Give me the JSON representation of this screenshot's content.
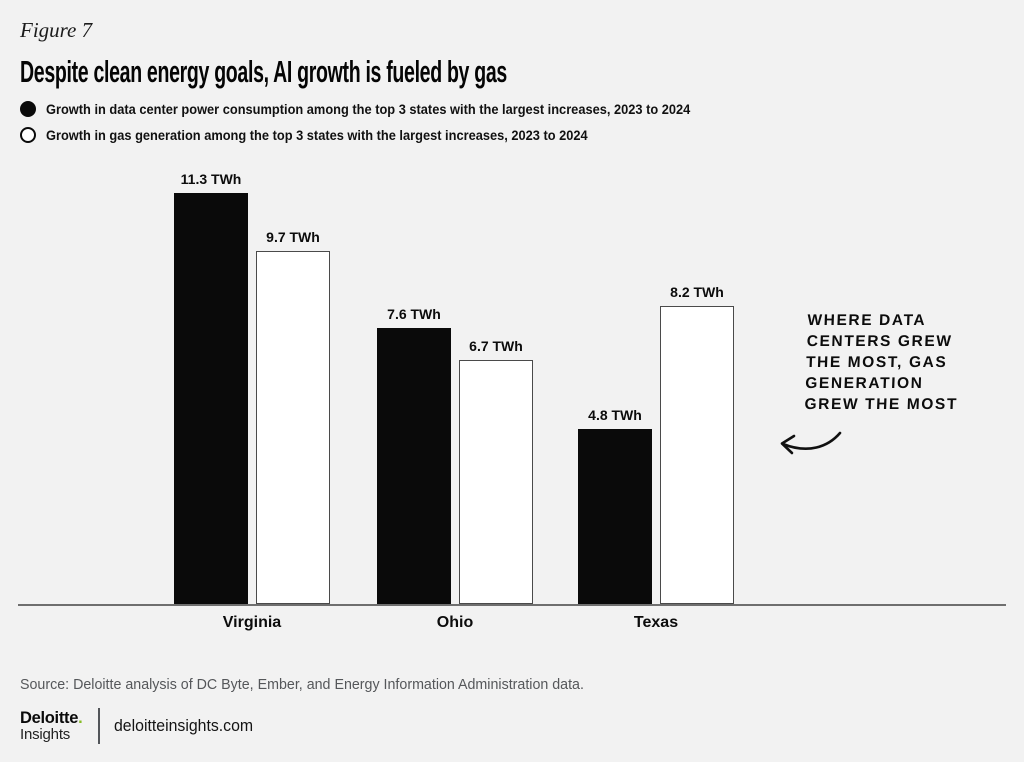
{
  "figure_label": "Figure 7",
  "title": "Despite clean energy goals, AI growth is fueled by gas",
  "legend": [
    {
      "marker": "filled-circle",
      "label": "Growth in data center power consumption among the top 3 states with the largest increases, 2023 to 2024"
    },
    {
      "marker": "open-circle",
      "label": "Growth in gas generation among the top 3 states with the largest increases, 2023 to 2024"
    }
  ],
  "chart_data": {
    "type": "bar",
    "categories": [
      "Virginia",
      "Ohio",
      "Texas"
    ],
    "series": [
      {
        "name": "Growth in data center power consumption, 2023 to 2024",
        "style": "filled-black",
        "values": [
          11.3,
          7.6,
          4.8
        ]
      },
      {
        "name": "Growth in gas generation, 2023 to 2024",
        "style": "outlined-white",
        "values": [
          9.7,
          6.7,
          8.2
        ]
      }
    ],
    "unit": "TWh",
    "ylim": [
      0,
      11.3
    ],
    "grid": false,
    "legend_position": "top-left",
    "value_labels_shown": true
  },
  "annotation": {
    "lines": [
      "WHERE DATA",
      "CENTERS GREW",
      "THE MOST, GAS",
      "GENERATION",
      "GREW THE MOST"
    ],
    "arrow": "curved-arrow-pointing-left-at-texas-bars"
  },
  "source": "Source: Deloitte analysis of DC Byte, Ember, and Energy Information Administration data.",
  "footer": {
    "logo_line1": "Deloitte",
    "logo_dot": ".",
    "logo_line2": "Insights",
    "site": "deloitteinsights.com"
  },
  "colors": {
    "background": "#f2f2f2",
    "bar_black": "#0a0a0a",
    "bar_white_fill": "#ffffff",
    "bar_white_border": "#4a4a4a",
    "baseline": "#6f6f6f",
    "deloitte_green": "#86bc25",
    "source_text": "#55575a"
  }
}
